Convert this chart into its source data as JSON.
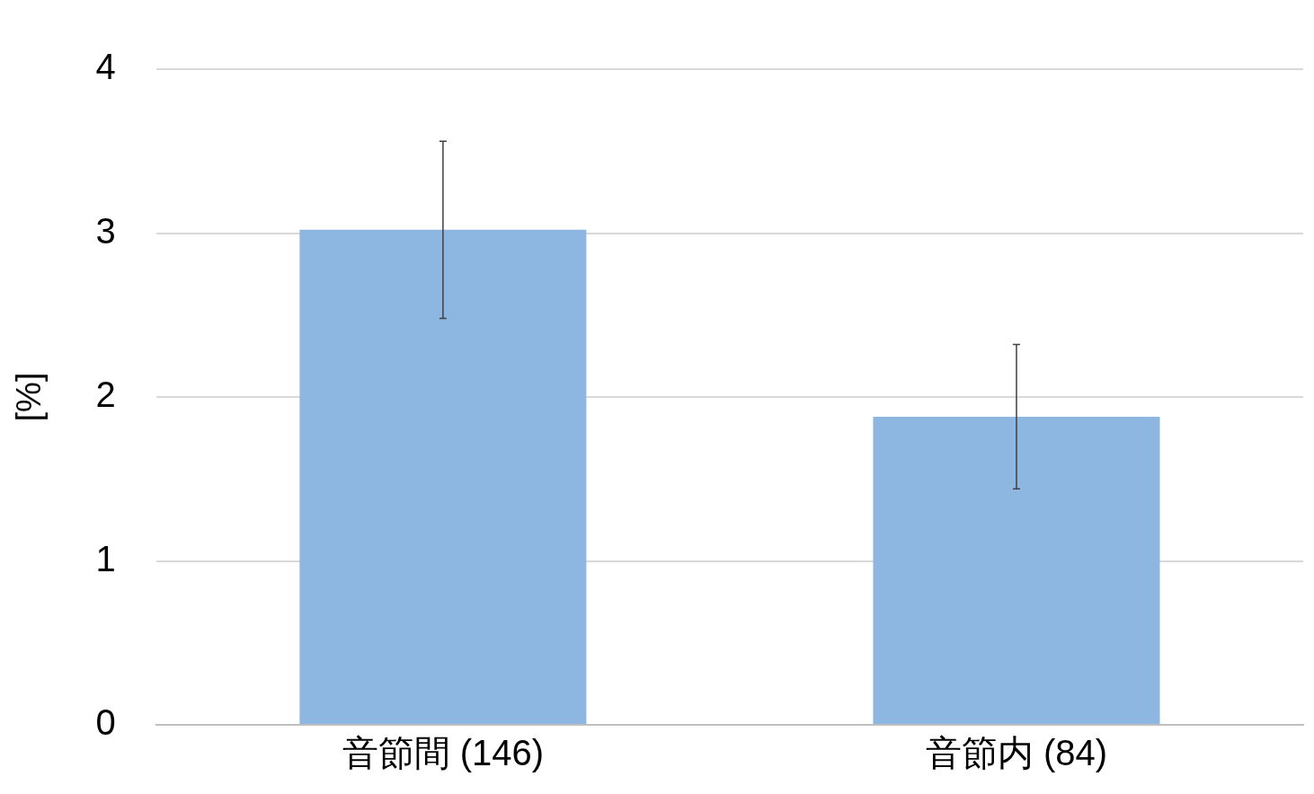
{
  "chart_data": {
    "type": "bar",
    "ylabel": "[%]",
    "categories": [
      "音節間 (146)",
      "音節内 (84)"
    ],
    "values": [
      3.02,
      1.88
    ],
    "errors": [
      0.54,
      0.44
    ],
    "color": "#8db7e0",
    "ylim": [
      0,
      4
    ],
    "yticks": [
      0,
      1,
      2,
      3,
      4
    ],
    "grid": "y"
  }
}
